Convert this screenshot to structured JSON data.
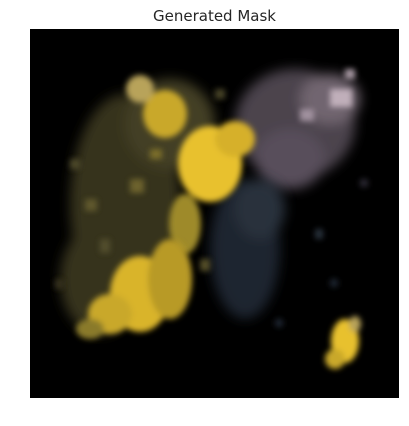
{
  "figure": {
    "title": "Generated Mask"
  },
  "image": {
    "subject": "generated-mask",
    "background_color": "#000000",
    "palette": {
      "yellow": "#e8c12e",
      "yellow_dim": "#8a7a2a",
      "olive": "#5a5430",
      "mauve": "#8e7f8c",
      "mauve_light": "#c9b8c3",
      "slate": "#3b4657",
      "blue_dim": "#2c3545"
    }
  }
}
